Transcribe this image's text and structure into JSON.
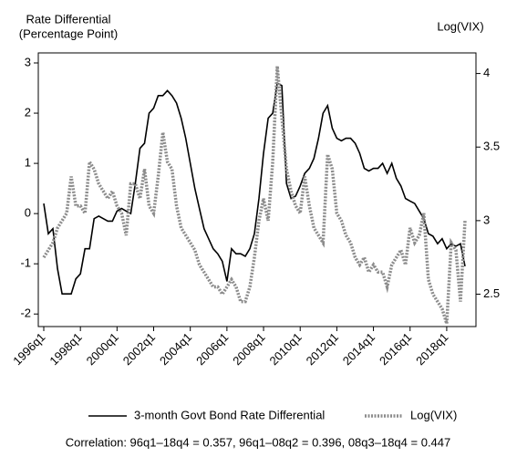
{
  "chart_data": {
    "type": "line",
    "ylabel": [
      "Rate Differential",
      "(Percentage Point)"
    ],
    "y2label": "Log(VIX)",
    "note": "Correlation: 96q1–18q4 = 0.357, 96q1–08q2 = 0.396, 08q3–18q4 = 0.447",
    "categories": [
      "1996q1",
      null,
      null,
      null,
      null,
      null,
      null,
      null,
      "1998q1",
      null,
      null,
      null,
      null,
      null,
      null,
      null,
      "2000q1",
      null,
      null,
      null,
      null,
      null,
      null,
      null,
      "2002q1",
      null,
      null,
      null,
      null,
      null,
      null,
      null,
      "2004q1",
      null,
      null,
      null,
      null,
      null,
      null,
      null,
      "2006q1",
      null,
      null,
      null,
      null,
      null,
      null,
      null,
      "2008q1",
      null,
      null,
      null,
      null,
      null,
      null,
      null,
      "2010q1",
      null,
      null,
      null,
      null,
      null,
      null,
      null,
      "2012q1",
      null,
      null,
      null,
      null,
      null,
      null,
      null,
      "2014q1",
      null,
      null,
      null,
      null,
      null,
      null,
      null,
      "2016q1",
      null,
      null,
      null,
      null,
      null,
      null,
      null,
      "2018q1",
      null,
      null,
      null,
      null
    ],
    "series": [
      {
        "name": "3-month Govt Bond Rate Differential",
        "color": "#000000",
        "line_style": "solid",
        "values": [
          0.2,
          -0.4,
          -0.3,
          -1.1,
          -1.6,
          -1.6,
          -1.6,
          -1.3,
          -1.2,
          -0.7,
          -0.7,
          -0.1,
          -0.05,
          -0.1,
          -0.15,
          -0.15,
          0.05,
          0.1,
          0.05,
          0.0,
          0.6,
          1.3,
          1.4,
          2.0,
          2.1,
          2.35,
          2.35,
          2.45,
          2.35,
          2.2,
          1.9,
          1.5,
          1.0,
          0.5,
          0.1,
          -0.3,
          -0.5,
          -0.7,
          -0.8,
          -0.95,
          -1.35,
          -0.7,
          -0.8,
          -0.8,
          -0.85,
          -0.7,
          -0.4,
          0.3,
          1.2,
          1.9,
          2.0,
          2.6,
          2.55,
          0.6,
          0.3,
          0.35,
          0.55,
          0.8,
          0.9,
          1.1,
          1.5,
          2.0,
          2.15,
          1.7,
          1.5,
          1.45,
          1.5,
          1.5,
          1.4,
          1.2,
          0.9,
          0.85,
          0.9,
          0.9,
          1.0,
          0.8,
          1.0,
          0.7,
          0.55,
          0.3,
          0.25,
          0.2,
          0.05,
          -0.1,
          -0.4,
          -0.45,
          -0.6,
          -0.5,
          -0.7,
          -0.6,
          -0.65,
          -0.6,
          -1.05
        ]
      },
      {
        "name": "Log(VIX)",
        "color": "#8c8c8c",
        "line_style": "dotted",
        "axis": "y2",
        "values": [
          2.75,
          2.8,
          2.85,
          2.95,
          3.0,
          3.05,
          3.3,
          3.1,
          3.1,
          3.05,
          3.4,
          3.35,
          3.25,
          3.2,
          3.15,
          3.2,
          3.1,
          3.05,
          2.9,
          3.25,
          3.25,
          3.15,
          3.35,
          3.1,
          3.05,
          3.3,
          3.6,
          3.4,
          3.35,
          3.1,
          2.95,
          2.9,
          2.85,
          2.8,
          2.7,
          2.65,
          2.6,
          2.55,
          2.55,
          2.5,
          2.55,
          2.6,
          2.55,
          2.45,
          2.45,
          2.55,
          2.75,
          3.0,
          3.15,
          3.0,
          3.4,
          4.05,
          3.7,
          3.35,
          3.2,
          3.1,
          3.05,
          3.3,
          3.1,
          2.95,
          2.9,
          2.85,
          3.45,
          3.35,
          3.05,
          3.0,
          2.9,
          2.85,
          2.75,
          2.7,
          2.75,
          2.65,
          2.7,
          2.65,
          2.65,
          2.55,
          2.7,
          2.75,
          2.8,
          2.7,
          2.95,
          2.85,
          2.9,
          3.05,
          2.6,
          2.5,
          2.45,
          2.4,
          2.3,
          2.85,
          2.8,
          2.45,
          3.0
        ]
      }
    ],
    "ylim": [
      -2.25,
      3.2
    ],
    "yticks": [
      -2,
      -1,
      0,
      1,
      2,
      3
    ],
    "y2lim": [
      2.28,
      4.14
    ],
    "y2ticks": [
      2.5,
      3,
      3.5,
      4
    ],
    "grid": false
  }
}
